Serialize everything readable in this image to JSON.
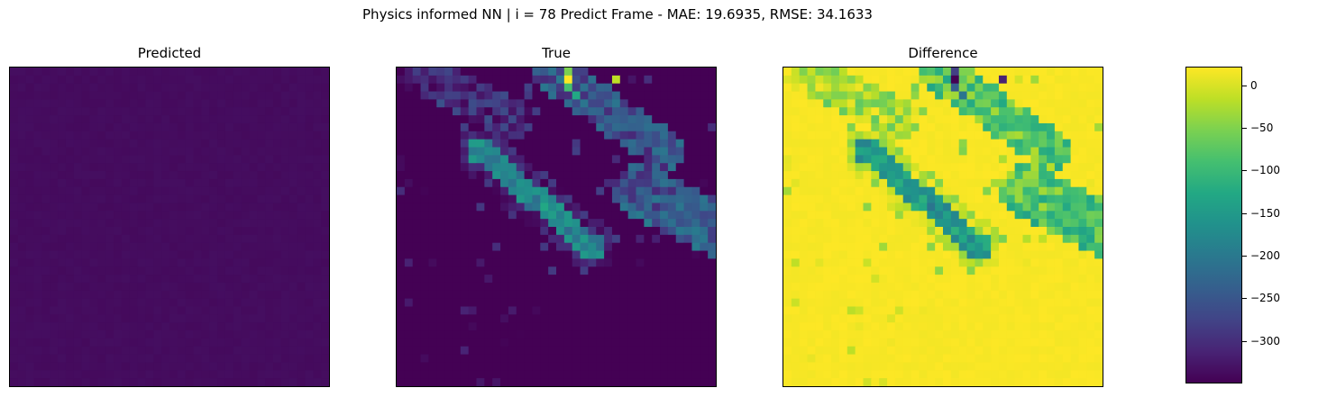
{
  "chart_data": {
    "type": "heatmap",
    "title": "Physics informed NN | i = 78 Predict Frame - MAE: 19.6935, RMSE: 34.1633",
    "colormap": "viridis",
    "axes_ticks": "hidden",
    "panels": [
      {
        "title": "Predicted"
      },
      {
        "title": "True"
      },
      {
        "title": "Difference"
      }
    ],
    "colorbar": {
      "range": [
        -350,
        22
      ],
      "ticks": [
        {
          "value": 0,
          "label": "0"
        },
        {
          "value": -50,
          "label": "−50"
        },
        {
          "value": -100,
          "label": "−100"
        },
        {
          "value": -150,
          "label": "−150"
        },
        {
          "value": -200,
          "label": "−200"
        },
        {
          "value": -250,
          "label": "−250"
        },
        {
          "value": -300,
          "label": "−300"
        }
      ]
    }
  }
}
